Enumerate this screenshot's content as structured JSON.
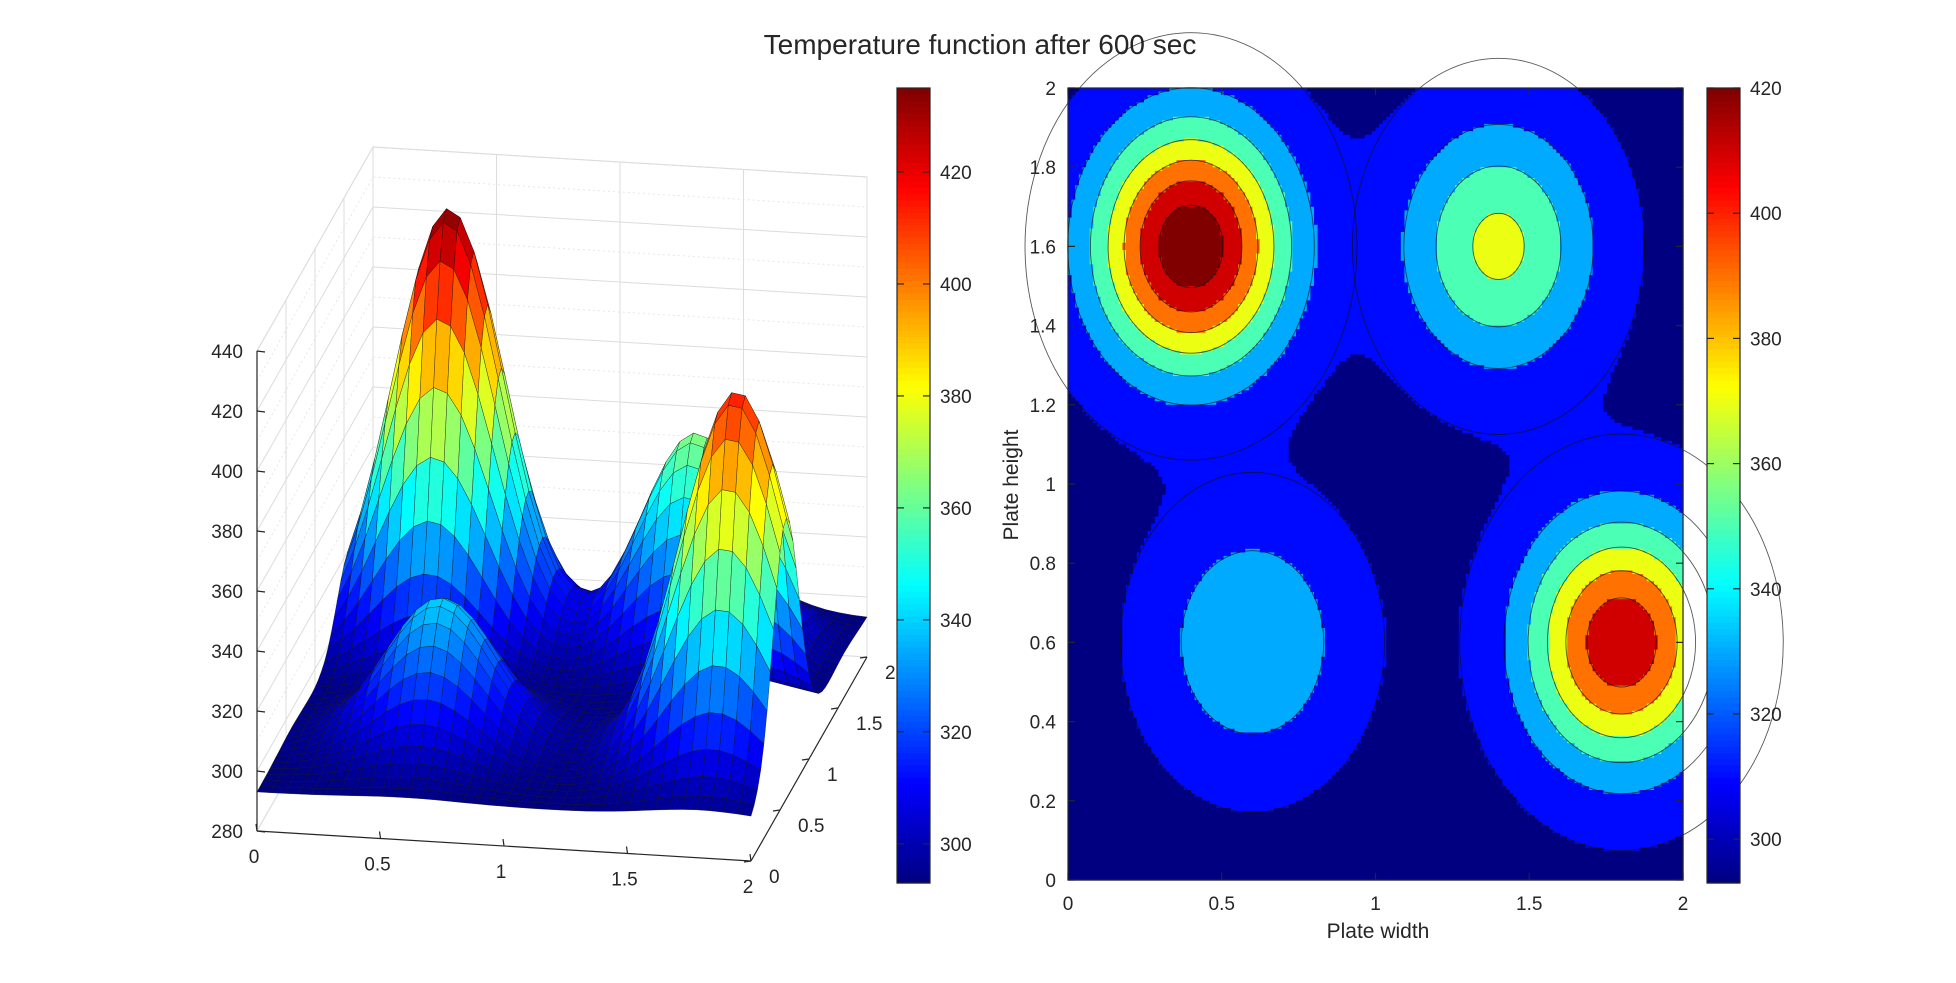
{
  "figure": {
    "title": "Temperature function after 600 sec"
  },
  "colormap": "jet",
  "chart_data": [
    {
      "type": "surface",
      "view": "3d",
      "x": {
        "range": [
          0,
          2
        ],
        "ticks": [
          "0",
          "0.5",
          "1",
          "1.5",
          "2"
        ]
      },
      "y": {
        "range": [
          0,
          2
        ],
        "ticks": [
          "0",
          "0.5",
          "1",
          "1.5",
          "2"
        ]
      },
      "z": {
        "range": [
          280,
          440
        ],
        "ticks": [
          "280",
          "300",
          "320",
          "340",
          "360",
          "380",
          "400",
          "420",
          "440"
        ]
      },
      "grid": true,
      "colorbar": {
        "ticks": [
          "300",
          "320",
          "340",
          "360",
          "380",
          "400",
          "420"
        ],
        "range": [
          293,
          435
        ]
      },
      "peaks": [
        {
          "x": 0.4,
          "y": 1.6,
          "temperature": 435
        },
        {
          "x": 1.4,
          "y": 1.6,
          "temperature": 365
        },
        {
          "x": 1.8,
          "y": 0.6,
          "temperature": 415
        },
        {
          "x": 0.6,
          "y": 0.6,
          "temperature": 340
        }
      ],
      "base_temperature": 293
    },
    {
      "type": "contourf",
      "xlabel": "Plate width",
      "ylabel": "Plate height",
      "x": {
        "range": [
          0,
          2
        ],
        "ticks": [
          "0",
          "0.5",
          "1",
          "1.5",
          "2"
        ]
      },
      "y": {
        "range": [
          0,
          2
        ],
        "ticks": [
          "0",
          "0.2",
          "0.4",
          "0.6",
          "0.8",
          "1",
          "1.2",
          "1.4",
          "1.6",
          "1.8",
          "2"
        ]
      },
      "levels": [
        300,
        320,
        340,
        360,
        380,
        400,
        420
      ],
      "colorbar": {
        "ticks": [
          "300",
          "320",
          "340",
          "360",
          "380",
          "400",
          "420"
        ],
        "range": [
          293,
          420
        ]
      },
      "peaks": [
        {
          "x": 0.4,
          "y": 1.6,
          "temperature": 435
        },
        {
          "x": 1.4,
          "y": 1.6,
          "temperature": 365
        },
        {
          "x": 1.8,
          "y": 0.6,
          "temperature": 415
        },
        {
          "x": 0.6,
          "y": 0.6,
          "temperature": 340
        }
      ]
    }
  ]
}
